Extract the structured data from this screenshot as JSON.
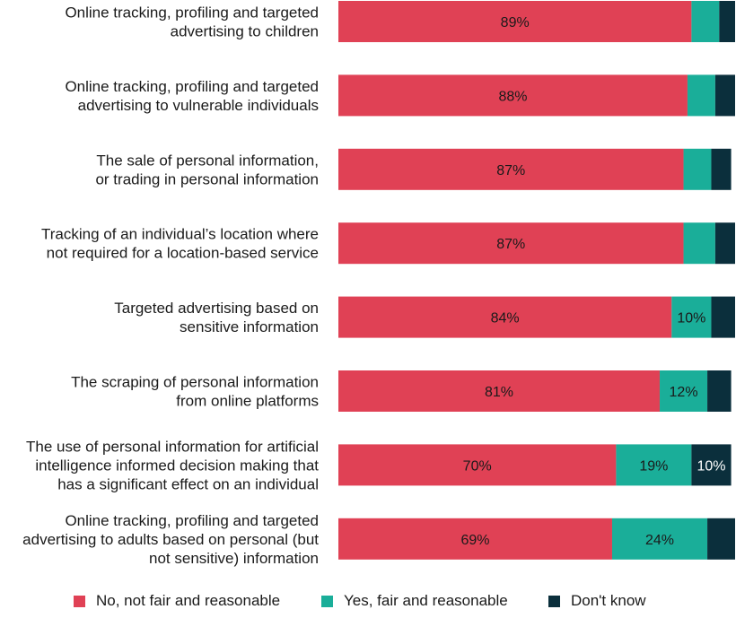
{
  "chart_data": {
    "type": "bar",
    "orientation": "horizontal",
    "stacked": true,
    "unit": "%",
    "categories": [
      [
        "Online tracking, profiling and targeted",
        "advertising to children"
      ],
      [
        "Online tracking, profiling and targeted",
        "advertising to vulnerable individuals"
      ],
      [
        "The sale of personal information,",
        "or trading in personal information"
      ],
      [
        "Tracking of an individual’s location where",
        "not required for a location-based service"
      ],
      [
        "Targeted advertising based on",
        "sensitive information"
      ],
      [
        "The scraping of personal information",
        "from online platforms"
      ],
      [
        "The use of personal information for artificial",
        "intelligence informed decision making that",
        "has a significant effect on an individual"
      ],
      [
        "Online tracking, profiling and targeted",
        "advertising to adults based on personal (but",
        "not sensitive) information"
      ]
    ],
    "series": [
      {
        "name": "No, not fair and reasonable",
        "color": "#e04155",
        "label_color": "#1a1a1a",
        "values": [
          89,
          88,
          87,
          87,
          84,
          81,
          70,
          69
        ],
        "labels": [
          "89%",
          "88%",
          "87%",
          "87%",
          "84%",
          "81%",
          "70%",
          "69%"
        ]
      },
      {
        "name": "Yes, fair and reasonable",
        "color": "#1aae99",
        "label_color": "#1a1a1a",
        "values": [
          7,
          7,
          7,
          8,
          10,
          12,
          19,
          24
        ],
        "labels": [
          "",
          "",
          "",
          "",
          "10%",
          "12%",
          "19%",
          "24%"
        ]
      },
      {
        "name": "Don't know",
        "color": "#0b2f3c",
        "label_color": "#ffffff",
        "values": [
          5,
          5,
          5,
          5,
          6,
          6,
          10,
          7
        ],
        "labels": [
          "",
          "",
          "",
          "",
          "",
          "",
          "10%",
          ""
        ]
      }
    ],
    "xlim": [
      0,
      100
    ],
    "grid": false,
    "legend": "bottom"
  }
}
